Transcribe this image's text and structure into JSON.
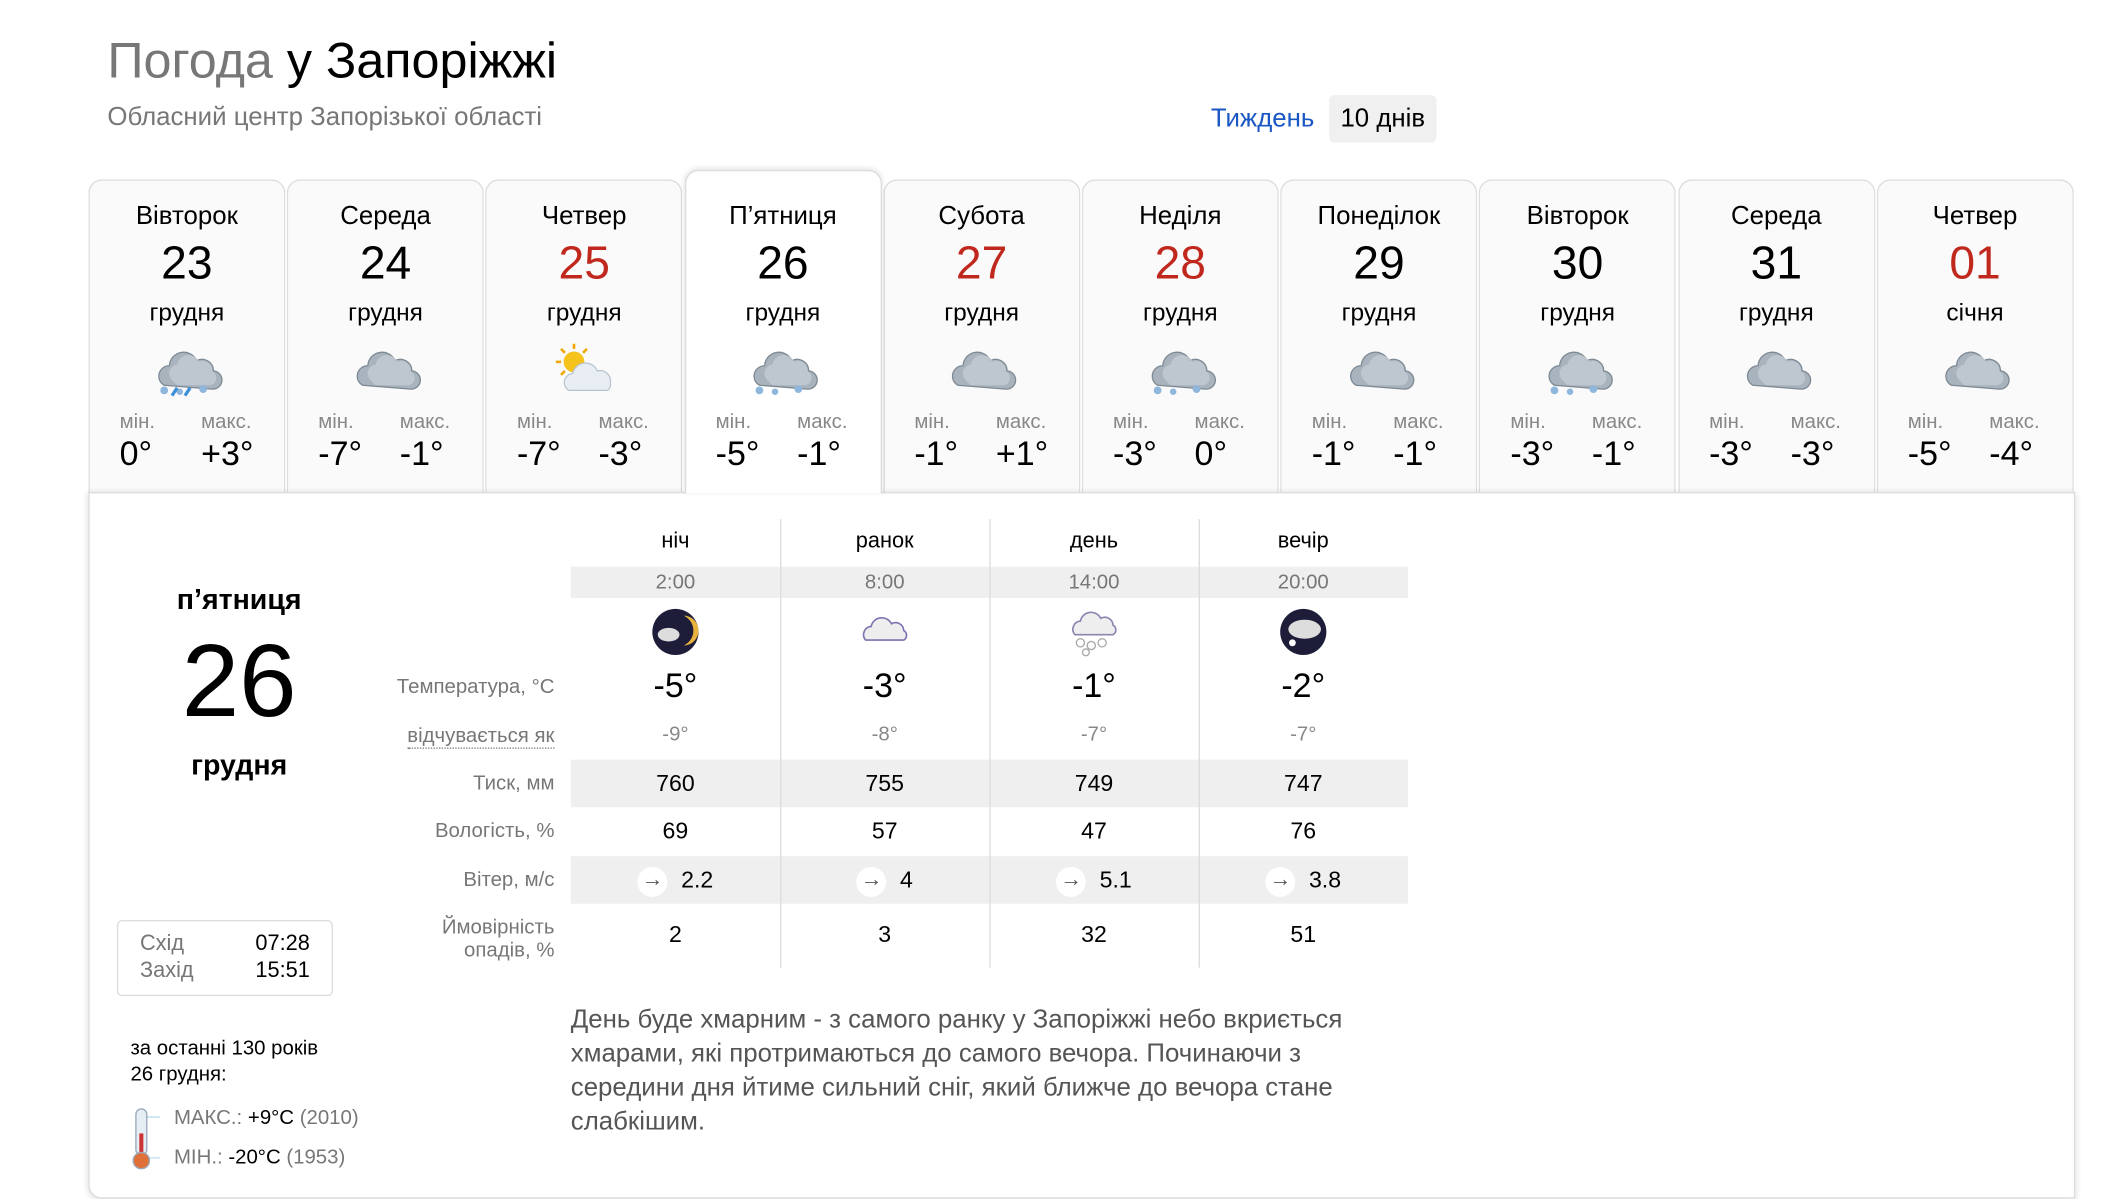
{
  "header": {
    "title_prefix": "Погода",
    "title_city": "у Запоріжжі",
    "subtitle": "Обласний центр Запорізької області"
  },
  "view_tabs": {
    "week": "Тиждень",
    "ten_days": "10 днів",
    "active": "ten_days"
  },
  "labels": {
    "min": "мін.",
    "max": "макс."
  },
  "days": [
    {
      "name": "Вівторок",
      "date": "23",
      "month": "грудня",
      "icon": "cloud-snow-rain-icon",
      "min": "0°",
      "max": "+3°",
      "holiday": false
    },
    {
      "name": "Середа",
      "date": "24",
      "month": "грудня",
      "icon": "overcast-icon",
      "min": "-7°",
      "max": "-1°",
      "holiday": false
    },
    {
      "name": "Четвер",
      "date": "25",
      "month": "грудня",
      "icon": "partly-sunny-icon",
      "min": "-7°",
      "max": "-3°",
      "holiday": true
    },
    {
      "name": "П’ятниця",
      "date": "26",
      "month": "грудня",
      "icon": "snow-icon",
      "min": "-5°",
      "max": "-1°",
      "holiday": false,
      "active": true
    },
    {
      "name": "Субота",
      "date": "27",
      "month": "грудня",
      "icon": "overcast-icon",
      "min": "-1°",
      "max": "+1°",
      "holiday": true
    },
    {
      "name": "Неділя",
      "date": "28",
      "month": "грудня",
      "icon": "cloud-snow-icon",
      "min": "-3°",
      "max": "0°",
      "holiday": true
    },
    {
      "name": "Понеділок",
      "date": "29",
      "month": "грудня",
      "icon": "overcast-icon",
      "min": "-1°",
      "max": "-1°",
      "holiday": false
    },
    {
      "name": "Вівторок",
      "date": "30",
      "month": "грудня",
      "icon": "cloud-light-snow-icon",
      "min": "-3°",
      "max": "-1°",
      "holiday": false
    },
    {
      "name": "Середа",
      "date": "31",
      "month": "грудня",
      "icon": "overcast-icon",
      "min": "-3°",
      "max": "-3°",
      "holiday": false
    },
    {
      "name": "Четвер",
      "date": "01",
      "month": "січня",
      "icon": "overcast-icon",
      "min": "-5°",
      "max": "-4°",
      "holiday": true
    }
  ],
  "selected": {
    "dow": "п’ятниця",
    "date": "26",
    "month": "грудня",
    "sun": {
      "rise_label": "Схід",
      "rise": "07:28",
      "set_label": "Захід",
      "set": "15:51"
    },
    "history": {
      "line1": "за останні 130 років",
      "line2": "26 грудня:",
      "max_label": "МАКС.:",
      "max": "+9°C",
      "max_year": "(2010)",
      "min_label": "МІН.:",
      "min": "-20°C",
      "min_year": "(1953)"
    },
    "row_labels": {
      "temp": "Температура, °C",
      "feels": "відчувається як",
      "pressure": "Тиск, мм",
      "humidity": "Вологість, %",
      "wind": "Вітер, м/с",
      "precip1": "Ймовірність",
      "precip2": "опадів, %"
    },
    "periods": [
      {
        "name": "ніч",
        "time": "2:00",
        "icon": "night-cloudy-icon",
        "temp": "-5°",
        "feels": "-9°",
        "pressure": "760",
        "humidity": "69",
        "wind": "2.2",
        "wind_dir": "west",
        "precip": "2"
      },
      {
        "name": "ранок",
        "time": "8:00",
        "icon": "cloudy-icon",
        "temp": "-3°",
        "feels": "-8°",
        "pressure": "755",
        "humidity": "57",
        "wind": "4",
        "wind_dir": "west",
        "precip": "3"
      },
      {
        "name": "день",
        "time": "14:00",
        "icon": "snow-icon",
        "temp": "-1°",
        "feels": "-7°",
        "pressure": "749",
        "humidity": "47",
        "wind": "5.1",
        "wind_dir": "west",
        "precip": "32"
      },
      {
        "name": "вечір",
        "time": "20:00",
        "icon": "night-snow-icon",
        "temp": "-2°",
        "feels": "-7°",
        "pressure": "747",
        "humidity": "76",
        "wind": "3.8",
        "wind_dir": "west",
        "precip": "51"
      }
    ],
    "description": "День буде хмарним - з самого ранку у Запоріжжі небо вкриється хмарами, які протримаються до самого вечора. Починаючи з середини дня йтиме сильний сніг, який ближче до вечора стане слабкішим."
  },
  "colors": {
    "holiday": "#c0281e",
    "link": "#1a56c4"
  }
}
